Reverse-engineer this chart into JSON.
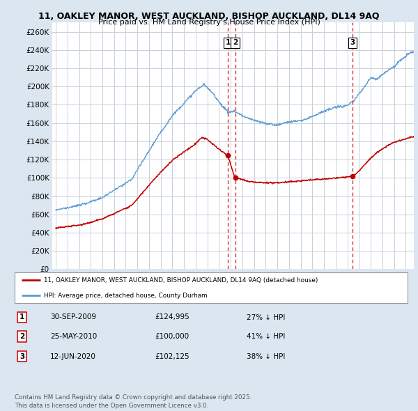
{
  "title1": "11, OAKLEY MANOR, WEST AUCKLAND, BISHOP AUCKLAND, DL14 9AQ",
  "title2": "Price paid vs. HM Land Registry's House Price Index (HPI)",
  "ylim": [
    0,
    270000
  ],
  "yticks": [
    0,
    20000,
    40000,
    60000,
    80000,
    100000,
    120000,
    140000,
    160000,
    180000,
    200000,
    220000,
    240000,
    260000
  ],
  "hpi_color": "#5b9bd5",
  "price_color": "#c00000",
  "vline_color": "#cc0000",
  "background_color": "#dce6f1",
  "plot_bg": "#ffffff",
  "grid_color": "#c8d0dc",
  "transactions": [
    {
      "label": "1",
      "date_x": 2009.75,
      "price": 124995
    },
    {
      "label": "2",
      "date_x": 2010.38,
      "price": 100000
    },
    {
      "label": "3",
      "date_x": 2020.45,
      "price": 102125
    }
  ],
  "legend_items": [
    {
      "color": "#c00000",
      "label": "11, OAKLEY MANOR, WEST AUCKLAND, BISHOP AUCKLAND, DL14 9AQ (detached house)"
    },
    {
      "color": "#5b9bd5",
      "label": "HPI: Average price, detached house, County Durham"
    }
  ],
  "table_rows": [
    {
      "num": "1",
      "date": "30-SEP-2009",
      "price": "£124,995",
      "pct": "27% ↓ HPI"
    },
    {
      "num": "2",
      "date": "25-MAY-2010",
      "price": "£100,000",
      "pct": "41% ↓ HPI"
    },
    {
      "num": "3",
      "date": "12-JUN-2020",
      "price": "£102,125",
      "pct": "38% ↓ HPI"
    }
  ],
  "footer": "Contains HM Land Registry data © Crown copyright and database right 2025.\nThis data is licensed under the Open Government Licence v3.0.",
  "xmin": 1994.7,
  "xmax": 2025.7
}
